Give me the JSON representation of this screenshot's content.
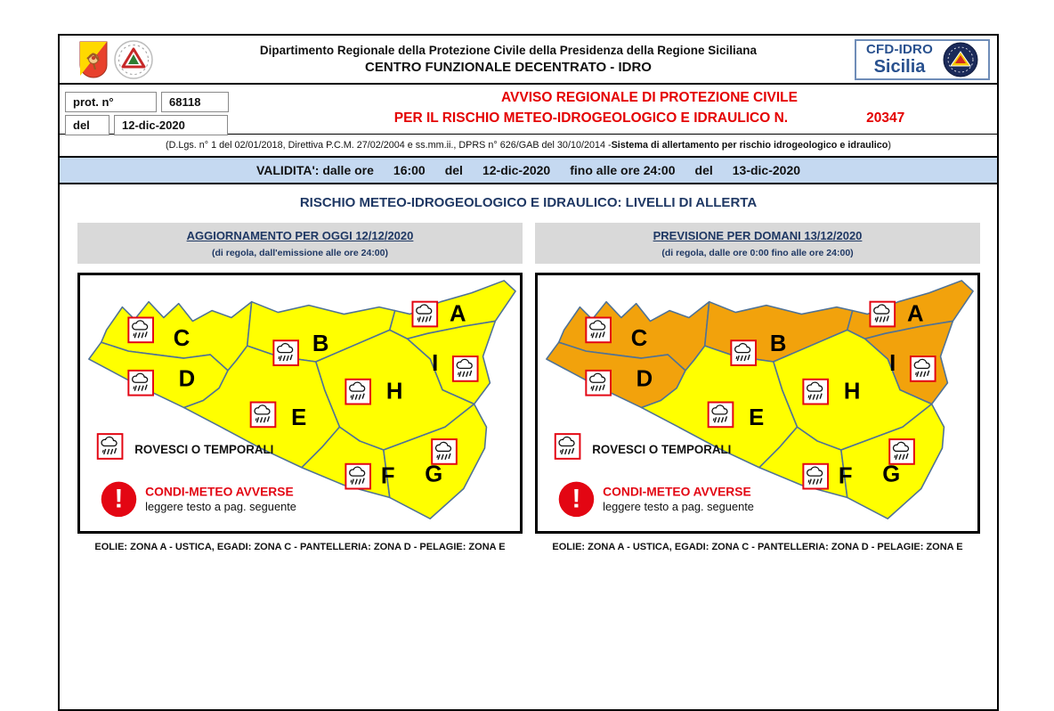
{
  "header": {
    "org_line1": "Dipartimento Regionale della Protezione Civile della Presidenza della Regione Siciliana",
    "org_line2": "CENTRO FUNZIONALE DECENTRATO - IDRO",
    "cfd_line1": "CFD-IDRO",
    "cfd_line2": "Sicilia",
    "icons": [
      "sicily-coat-of-arms",
      "protezione-civile-logo",
      "cfd-idro-logo"
    ]
  },
  "protocol": {
    "prot_label": "prot. n°",
    "prot_value": "68118",
    "del_label": "del",
    "del_value": "12-dic-2020"
  },
  "notice": {
    "title_line1": "AVVISO REGIONALE DI PROTEZIONE CIVILE",
    "title_line2": "PER IL RISCHIO METEO-IDROGEOLOGICO E IDRAULICO N.",
    "number": "20347",
    "legal_prefix": "(D.Lgs. n° 1 del 02/01/2018, Direttiva P.C.M. 27/02/2004 e ss.mm.ii., DPRS n° 626/GAB del 30/10/2014 - ",
    "legal_bold": "Sistema di allertamento per rischio idrogeologico e idraulico",
    "legal_suffix": ")"
  },
  "validity": {
    "label": "VALIDITA': dalle ore",
    "start_time": "16:00",
    "del1": "del",
    "start_date": "12-dic-2020",
    "until": "fino alle ore 24:00",
    "del2": "del",
    "end_date": "13-dic-2020"
  },
  "section_title": "RISCHIO METEO-IDROGEOLOGICO E IDRAULICO: LIVELLI DI ALLERTA",
  "panels": [
    {
      "header": "AGGIORNAMENTO PER OGGI 12/12/2020",
      "subheader": "(di regola, dall'emissione alle ore 24:00)",
      "islands_note": "EOLIE: ZONA A - USTICA, EGADI: ZONA C - PANTELLERIA: ZONA D - PELAGIE: ZONA E",
      "levels": {
        "A": "yellow",
        "B": "yellow",
        "C": "yellow",
        "D": "yellow",
        "E": "yellow",
        "F": "yellow",
        "G": "yellow",
        "H": "yellow",
        "I": "yellow"
      }
    },
    {
      "header": "PREVISIONE PER DOMANI 13/12/2020",
      "subheader": "(di regola, dalle ore 0:00 fino alle ore 24:00)",
      "islands_note": "EOLIE: ZONA A - USTICA, EGADI: ZONA C - PANTELLERIA: ZONA D - PELAGIE: ZONA E",
      "levels": {
        "A": "orange",
        "B": "orange",
        "C": "orange",
        "D": "orange",
        "E": "yellow",
        "F": "yellow",
        "G": "yellow",
        "H": "yellow",
        "I": "orange"
      }
    }
  ],
  "legend": {
    "rain_icon": "storm-rain-icon",
    "rain_label": "ROVESCI O TEMPORALI",
    "adverse_icon": "exclamation-circle-icon",
    "adverse_title": "CONDI-METEO AVVERSE",
    "adverse_sub": "leggere testo a pag. seguente"
  },
  "colors": {
    "alert_yellow": "#ffff00",
    "alert_orange": "#f2a20c",
    "map_stroke": "#4f7296",
    "warning_red": "#e30613",
    "title_red": "#e40000",
    "navy": "#1f3864",
    "validity_blue": "#c5d9f1",
    "panel_gray": "#d9d9d9"
  }
}
